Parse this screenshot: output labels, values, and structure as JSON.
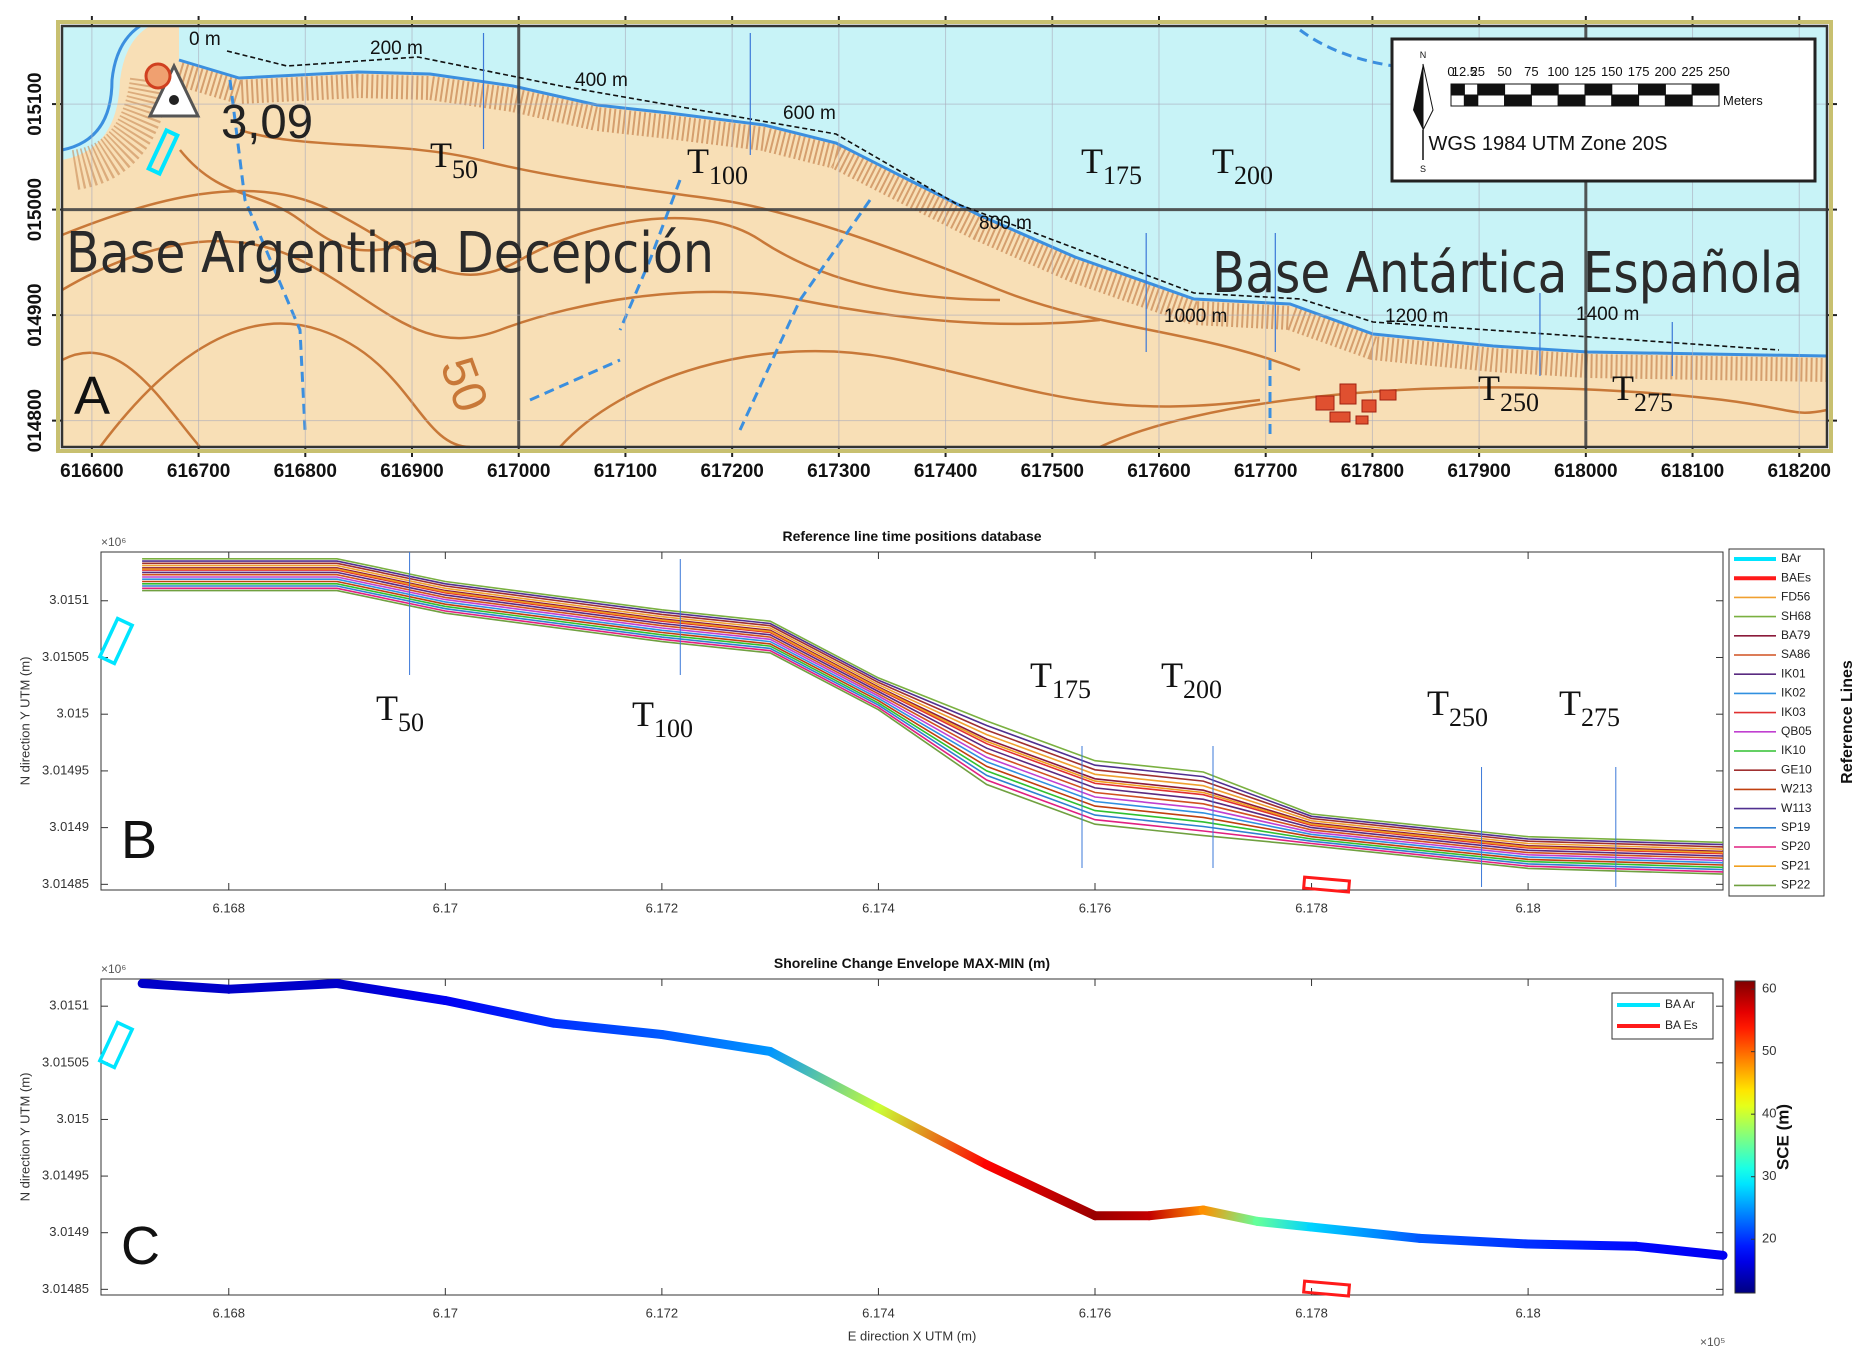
{
  "chart_data": [
    {
      "type": "map",
      "panel_label": "A",
      "xlim": [
        616572,
        618226
      ],
      "xticks": [
        616600,
        616700,
        616800,
        616900,
        617000,
        617100,
        617200,
        617300,
        617400,
        617500,
        617600,
        617700,
        617800,
        617900,
        618000,
        618100,
        618200
      ],
      "ylim": [
        14775,
        15174
      ],
      "yticks": [
        {
          "value": 14800,
          "label": "014800"
        },
        {
          "value": 14900,
          "label": "014900"
        },
        {
          "value": 15000,
          "label": "015000"
        },
        {
          "value": 15100,
          "label": "015100"
        }
      ],
      "place_labels": [
        "Base Argentina Decepción",
        "Base Antártica Española"
      ],
      "elevation_labels": [
        "3,09",
        "50"
      ],
      "distance_labels": [
        "0 m",
        "200 m",
        "400 m",
        "600 m",
        "800 m",
        "1000 m",
        "1200 m",
        "1400 m"
      ],
      "transects": [
        {
          "name": "T",
          "sub": "50",
          "x": 616967
        },
        {
          "name": "T",
          "sub": "100",
          "x": 617217
        },
        {
          "name": "T",
          "sub": "175",
          "x": 617588
        },
        {
          "name": "T",
          "sub": "200",
          "x": 617709
        },
        {
          "name": "T",
          "sub": "250",
          "x": 617957
        },
        {
          "name": "T",
          "sub": "275",
          "x": 618081
        }
      ],
      "scalebar": {
        "ticks": [
          0,
          12.5,
          25,
          50,
          75,
          100,
          125,
          150,
          175,
          200,
          225,
          250
        ],
        "unit": "Meters",
        "north": "N",
        "south": "S",
        "crs": "WGS 1984 UTM Zone 20S"
      }
    },
    {
      "type": "line",
      "panel_label": "B",
      "title": "Reference line time positions database",
      "ylabel": "N direction Y UTM (m)",
      "y_multiplier": "×10⁶",
      "legend_title": "Reference Lines",
      "xlim": [
        616682,
        618180
      ],
      "xticks": [
        {
          "value": 616800,
          "label": "6.168"
        },
        {
          "value": 617000,
          "label": "6.17"
        },
        {
          "value": 617200,
          "label": "6.172"
        },
        {
          "value": 617400,
          "label": "6.174"
        },
        {
          "value": 617600,
          "label": "6.176"
        },
        {
          "value": 617800,
          "label": "6.178"
        },
        {
          "value": 618000,
          "label": "6.18"
        }
      ],
      "ylim": [
        3014845,
        3015143
      ],
      "yticks": [
        {
          "value": 3014850,
          "label": "3.01485"
        },
        {
          "value": 3014900,
          "label": "3.0149"
        },
        {
          "value": 3014950,
          "label": "3.01495"
        },
        {
          "value": 3015000,
          "label": "3.015"
        },
        {
          "value": 3015050,
          "label": "3.01505"
        },
        {
          "value": 3015100,
          "label": "3.0151"
        }
      ],
      "bases": [
        {
          "name": "BAr",
          "color": "#00e5ff"
        },
        {
          "name": "BAEs",
          "color": "#ff1a1a"
        }
      ],
      "x": [
        616720,
        616900,
        617000,
        617200,
        617300,
        617400,
        617500,
        617600,
        617700,
        617800,
        618000,
        618180
      ],
      "series": [
        {
          "name": "FD56",
          "color": "#f0a030",
          "values": [
            3015131,
            3015131,
            3015111,
            3015086,
            3015076,
            3015026,
            3014982,
            3014947,
            3014937,
            3014906,
            3014886,
            3014881
          ]
        },
        {
          "name": "SH68",
          "color": "#7ab040",
          "values": [
            3015137,
            3015137,
            3015117,
            3015092,
            3015082,
            3015032,
            3014994,
            3014959,
            3014949,
            3014912,
            3014892,
            3014887
          ]
        },
        {
          "name": "BA79",
          "color": "#8b1a3a",
          "values": [
            3015129,
            3015129,
            3015109,
            3015084,
            3015074,
            3015024,
            3014978,
            3014943,
            3014933,
            3014904,
            3014884,
            3014879
          ]
        },
        {
          "name": "SA86",
          "color": "#d05020",
          "values": [
            3015123,
            3015123,
            3015103,
            3015078,
            3015068,
            3015018,
            3014966,
            3014931,
            3014921,
            3014898,
            3014878,
            3014873
          ]
        },
        {
          "name": "IK01",
          "color": "#5a2a80",
          "values": [
            3015125,
            3015125,
            3015105,
            3015080,
            3015070,
            3015020,
            3014970,
            3014935,
            3014925,
            3014900,
            3014880,
            3014875
          ]
        },
        {
          "name": "IK02",
          "color": "#3090e0",
          "values": [
            3015119,
            3015119,
            3015099,
            3015074,
            3015064,
            3015014,
            3014958,
            3014923,
            3014913,
            3014894,
            3014874,
            3014869
          ]
        },
        {
          "name": "IK03",
          "color": "#e03030",
          "values": [
            3015127,
            3015127,
            3015107,
            3015082,
            3015072,
            3015022,
            3014974,
            3014939,
            3014929,
            3014902,
            3014882,
            3014877
          ]
        },
        {
          "name": "QB05",
          "color": "#c040d0",
          "values": [
            3015121,
            3015121,
            3015101,
            3015076,
            3015066,
            3015016,
            3014962,
            3014927,
            3014917,
            3014896,
            3014876,
            3014871
          ]
        },
        {
          "name": "IK10",
          "color": "#30c030",
          "values": [
            3015115,
            3015115,
            3015095,
            3015070,
            3015060,
            3015010,
            3014950,
            3014915,
            3014905,
            3014890,
            3014870,
            3014865
          ]
        },
        {
          "name": "GE10",
          "color": "#a03030",
          "values": [
            3015133,
            3015133,
            3015113,
            3015088,
            3015078,
            3015028,
            3014986,
            3014951,
            3014941,
            3014908,
            3014888,
            3014883
          ]
        },
        {
          "name": "W213",
          "color": "#c04010",
          "values": [
            3015117,
            3015117,
            3015097,
            3015072,
            3015062,
            3015012,
            3014954,
            3014919,
            3014909,
            3014892,
            3014872,
            3014867
          ]
        },
        {
          "name": "W113",
          "color": "#503090",
          "values": [
            3015135,
            3015135,
            3015115,
            3015090,
            3015080,
            3015030,
            3014990,
            3014955,
            3014945,
            3014910,
            3014890,
            3014885
          ]
        },
        {
          "name": "SP19",
          "color": "#3080d0",
          "values": [
            3015113,
            3015113,
            3015093,
            3015068,
            3015058,
            3015008,
            3014946,
            3014911,
            3014901,
            3014888,
            3014868,
            3014863
          ]
        },
        {
          "name": "SP20",
          "color": "#e02080",
          "values": [
            3015111,
            3015111,
            3015091,
            3015066,
            3015056,
            3015006,
            3014942,
            3014907,
            3014897,
            3014886,
            3014866,
            3014861
          ]
        },
        {
          "name": "SP21",
          "color": "#f0a020",
          "values": [
            3015128,
            3015128,
            3015108,
            3015083,
            3015073,
            3015023,
            3014976,
            3014941,
            3014931,
            3014903,
            3014883,
            3014878
          ]
        },
        {
          "name": "SP22",
          "color": "#70a040",
          "values": [
            3015109,
            3015109,
            3015089,
            3015064,
            3015054,
            3015004,
            3014938,
            3014903,
            3014893,
            3014884,
            3014864,
            3014859
          ]
        }
      ],
      "transects": [
        {
          "name": "T",
          "sub": "50",
          "x": 616967
        },
        {
          "name": "T",
          "sub": "100",
          "x": 617217
        },
        {
          "name": "T",
          "sub": "175",
          "x": 617588
        },
        {
          "name": "T",
          "sub": "200",
          "x": 617709
        },
        {
          "name": "T",
          "sub": "250",
          "x": 617957
        },
        {
          "name": "T",
          "sub": "275",
          "x": 618081
        }
      ]
    },
    {
      "type": "colorline",
      "panel_label": "C",
      "title": "Shoreline Change Envelope MAX-MIN (m)",
      "xlabel": "E direction X UTM (m)",
      "ylabel": "N direction Y UTM (m)",
      "x_multiplier": "×10⁵",
      "y_multiplier": "×10⁶",
      "xlim": [
        616682,
        618180
      ],
      "xticks": [
        {
          "value": 616800,
          "label": "6.168"
        },
        {
          "value": 617000,
          "label": "6.17"
        },
        {
          "value": 617200,
          "label": "6.172"
        },
        {
          "value": 617400,
          "label": "6.174"
        },
        {
          "value": 617600,
          "label": "6.176"
        },
        {
          "value": 617800,
          "label": "6.178"
        },
        {
          "value": 618000,
          "label": "6.18"
        }
      ],
      "ylim": [
        3014845,
        3015124
      ],
      "yticks": [
        {
          "value": 3014850,
          "label": "3.01485"
        },
        {
          "value": 3014900,
          "label": "3.0149"
        },
        {
          "value": 3014950,
          "label": "3.01495"
        },
        {
          "value": 3015000,
          "label": "3.015"
        },
        {
          "value": 3015050,
          "label": "3.01505"
        },
        {
          "value": 3015100,
          "label": "3.0151"
        }
      ],
      "bases": [
        {
          "name": "BA Ar",
          "color": "#00e5ff"
        },
        {
          "name": "BA Es",
          "color": "#ff1a1a"
        }
      ],
      "x": [
        616720,
        616800,
        616900,
        617000,
        617100,
        617200,
        617300,
        617400,
        617500,
        617600,
        617650,
        617700,
        617750,
        617800,
        617900,
        618000,
        618100,
        618180
      ],
      "y": [
        3015120,
        3015115,
        3015120,
        3015105,
        3015085,
        3015075,
        3015060,
        3015010,
        3014960,
        3014915,
        3014915,
        3014920,
        3014910,
        3014905,
        3014895,
        3014890,
        3014888,
        3014880
      ],
      "values": [
        15,
        15,
        15,
        17,
        20,
        22,
        25,
        40,
        55,
        60,
        58,
        48,
        35,
        28,
        22,
        20,
        18,
        17
      ],
      "clim": [
        11.4,
        61.3
      ],
      "cticks": [
        20,
        30,
        40,
        50,
        60
      ],
      "colorbar_label": "SCE (m)"
    }
  ]
}
